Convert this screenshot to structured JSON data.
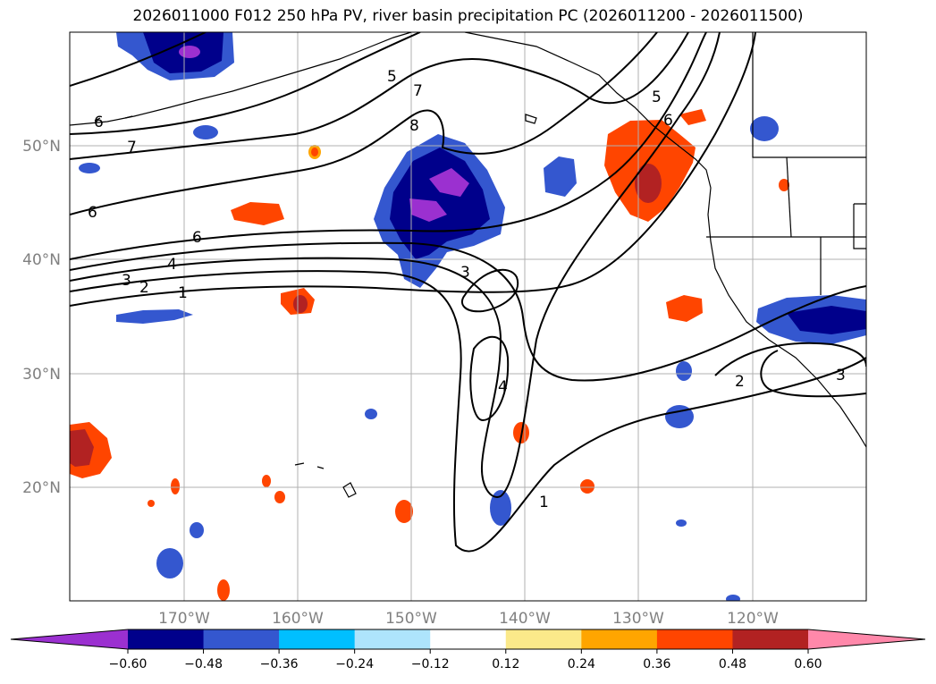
{
  "title": "2026011000 F012 250 hPa PV, river basin precipitation PC (2026011200 - 2026011500)",
  "map": {
    "lat_labels": [
      "50°N",
      "40°N",
      "30°N",
      "20°N"
    ],
    "lon_labels": [
      "170°W",
      "160°W",
      "150°W",
      "140°W",
      "130°W",
      "120°W"
    ]
  },
  "contour_labels": [
    "5",
    "7",
    "8",
    "5",
    "6",
    "7",
    "6",
    "6",
    "6",
    "4",
    "3",
    "2",
    "1",
    "3",
    "4",
    "1",
    "2",
    "3"
  ],
  "colorbar": {
    "ticks": [
      "−0.60",
      "−0.48",
      "−0.36",
      "−0.24",
      "−0.12",
      "0.12",
      "0.24",
      "0.36",
      "0.48",
      "0.60"
    ],
    "colors": [
      "#9b30d0",
      "#00008b",
      "#3457cf",
      "#00bfff",
      "#aee4fc",
      "#ffffff",
      "#fbe98a",
      "#ffa500",
      "#ff4500",
      "#b22222",
      "#ff88aa"
    ]
  }
}
